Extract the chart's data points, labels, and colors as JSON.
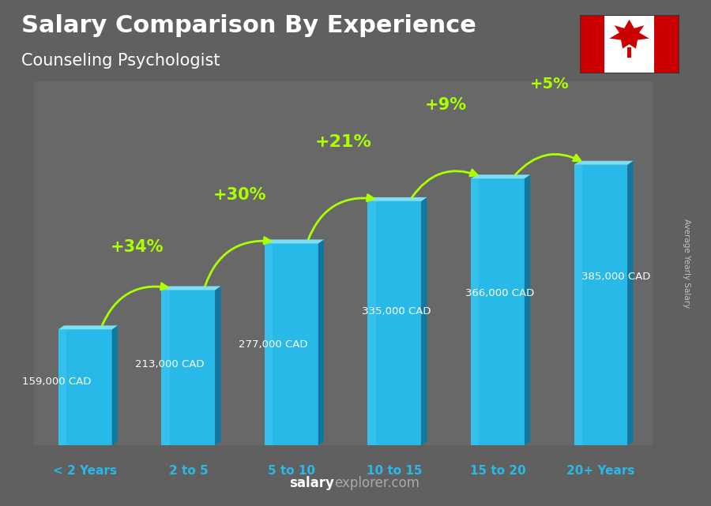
{
  "title": "Salary Comparison By Experience",
  "subtitle": "Counseling Psychologist",
  "categories": [
    "< 2 Years",
    "2 to 5",
    "5 to 10",
    "10 to 15",
    "15 to 20",
    "20+ Years"
  ],
  "values": [
    159000,
    213000,
    277000,
    335000,
    366000,
    385000
  ],
  "salary_labels": [
    "159,000 CAD",
    "213,000 CAD",
    "277,000 CAD",
    "335,000 CAD",
    "366,000 CAD",
    "385,000 CAD"
  ],
  "pct_labels": [
    "+34%",
    "+30%",
    "+21%",
    "+9%",
    "+5%"
  ],
  "bar_color_main": "#29B9E8",
  "bar_color_light": "#7DDFF5",
  "bar_color_dark": "#1A8CB5",
  "bar_color_right": "#1078A0",
  "background_top": "#7a7a7a",
  "background_bottom": "#4a4a4a",
  "title_color": "#FFFFFF",
  "subtitle_color": "#FFFFFF",
  "salary_label_color": "#FFFFFF",
  "pct_color": "#AAFF00",
  "arrow_color": "#AAFF00",
  "xlabel_color": "#29B9E8",
  "ylabel_text": "Average Yearly Salary",
  "footer_bold": "salary",
  "footer_light": "explorer.com",
  "ylim_max": 500000,
  "bar_bottom": 0,
  "flag_box_color": "#2a2a2a",
  "flag_red": "#CC0000",
  "flag_white": "#FFFFFF"
}
